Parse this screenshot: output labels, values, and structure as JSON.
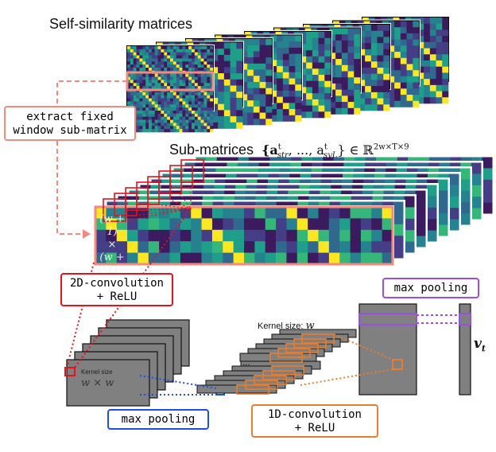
{
  "title_ssm": "Self-similarity matrices",
  "extract_label_line1": "extract fixed",
  "extract_label_line2": "window sub-matrix",
  "submatrices_label": "Sub-matrices",
  "submatrices_set": "{a",
  "submatrices_set_sup1": "t",
  "submatrices_set_sub1": "str",
  "submatrices_set_mid": ", ..., a",
  "submatrices_set_sup2": "t",
  "submatrices_set_sub2": "syL",
  "submatrices_set_end": "} ∈ ℝ",
  "submatrices_dim": "2w×T×9",
  "window_size_line1": "(w + 1)",
  "window_size_line2": "×",
  "window_size_line3": "(w + 1)",
  "conv2d_line1": "2D-convolution",
  "conv2d_line2": "+ ReLU",
  "kernel2d_title": "Kernel size",
  "kernel2d_value": "w × w",
  "maxpool1_label": "max pooling",
  "conv1d_line1": "1D-convolution",
  "conv1d_line2": "+ ReLU",
  "kernel1d_label": "Kernel size: ",
  "kernel1d_value": "w",
  "ellipsis": "...",
  "maxpool2_label": "max pooling",
  "output_label": "v",
  "output_sub": "t",
  "colors": {
    "salmon": "#f28a7e",
    "red": "#e3141b",
    "blue": "#1f4fe0",
    "orange": "#e87d2e",
    "purple": "#9b4fe0",
    "gray": "#808080",
    "viridis_dark": "#3b1a5e",
    "viridis_mid": "#2f6e8e",
    "viridis_green": "#35b779",
    "viridis_yellow": "#fde725"
  }
}
